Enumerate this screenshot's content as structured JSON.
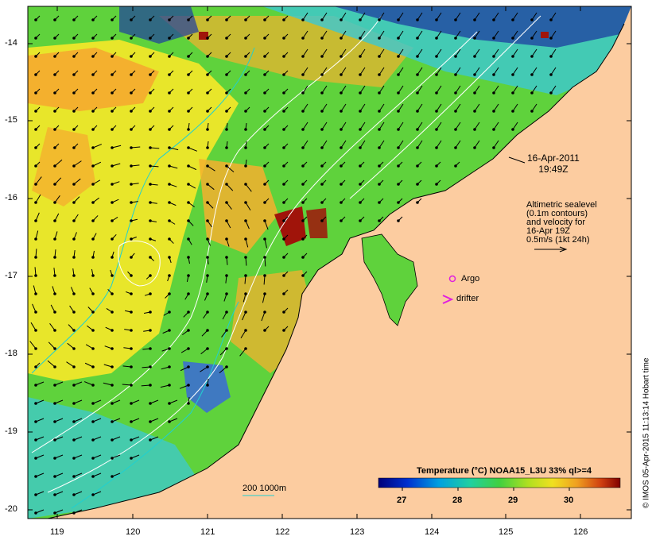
{
  "map": {
    "y_axis_labels": [
      "-14",
      "-15",
      "-16",
      "-17",
      "-18",
      "-19",
      "-20"
    ],
    "x_axis_labels": [
      "119",
      "120",
      "121",
      "122",
      "123",
      "124",
      "125",
      "126"
    ],
    "timestamp_date": "16-Apr-2011",
    "timestamp_time": "19:49Z",
    "legend_lines": [
      "Altimetric sealevel",
      "(0.1m contours)",
      "and velocity for",
      "16-Apr 19Z",
      "0.5m/s (1kt 24h)"
    ],
    "argo_label": "Argo",
    "drifter_label": "drifter",
    "depth_label": "200  1000m",
    "colorbar_title": "Temperature (°C) NOAA15_L3U 33% ql>=4",
    "colorbar_ticks": [
      "27",
      "28",
      "29",
      "30"
    ],
    "credit": "© IMOS 05-Apr-2015 11:13:14 Hobart time",
    "colors": {
      "land": "#fccca0",
      "ocean_green": "#5fd23c",
      "ocean_yellow": "#e8e62a",
      "ocean_orange": "#f4b02e",
      "ocean_cyan": "#3cc8d2",
      "ocean_blue": "#1e3ca0",
      "hot_red": "#a0140a",
      "argo_marker": "#e020e0",
      "isobath_200": "#20d0d0"
    }
  }
}
